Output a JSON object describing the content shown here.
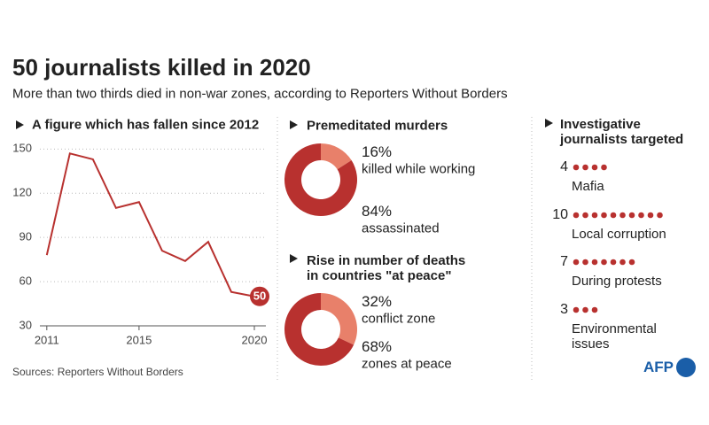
{
  "title": "50 journalists killed in 2020",
  "subtitle": "More than two thirds died in non-war zones, according to Reporters Without Borders",
  "source": "Sources: Reporters Without Borders",
  "logo": "AFP",
  "chart_data": [
    {
      "type": "line",
      "title": "A figure which has fallen since 2012",
      "x": [
        2011,
        2012,
        2013,
        2014,
        2015,
        2016,
        2017,
        2018,
        2019,
        2020
      ],
      "values": [
        78,
        147,
        143,
        110,
        114,
        81,
        74,
        87,
        53,
        50
      ],
      "color": "#b8312f",
      "xlim": [
        2010.7,
        2020.5
      ],
      "ylim": [
        30,
        155
      ],
      "xticks": [
        2011,
        2015,
        2020
      ],
      "yticks": [
        30,
        60,
        90,
        120,
        150
      ],
      "grid": true
    },
    {
      "type": "donut",
      "title": "Premeditated murders",
      "categories": [
        "killed while working",
        "assassinated"
      ],
      "values": [
        16,
        84
      ],
      "value_labels": [
        "16%",
        "84%"
      ],
      "colors": [
        "#e8806a",
        "#b8312f"
      ]
    },
    {
      "type": "donut",
      "title": "Rise in number of deaths in countries \"at peace\"",
      "categories": [
        "conflict zone",
        "zones at peace"
      ],
      "values": [
        32,
        68
      ],
      "value_labels": [
        "32%",
        "68%"
      ],
      "colors": [
        "#e8806a",
        "#b8312f"
      ]
    },
    {
      "type": "dot",
      "title": "Investigative journalists targeted",
      "categories": [
        "Mafia",
        "Local corruption",
        "During protests",
        "Environmental issues"
      ],
      "values": [
        4,
        10,
        7,
        3
      ],
      "color": "#b8312f"
    }
  ]
}
